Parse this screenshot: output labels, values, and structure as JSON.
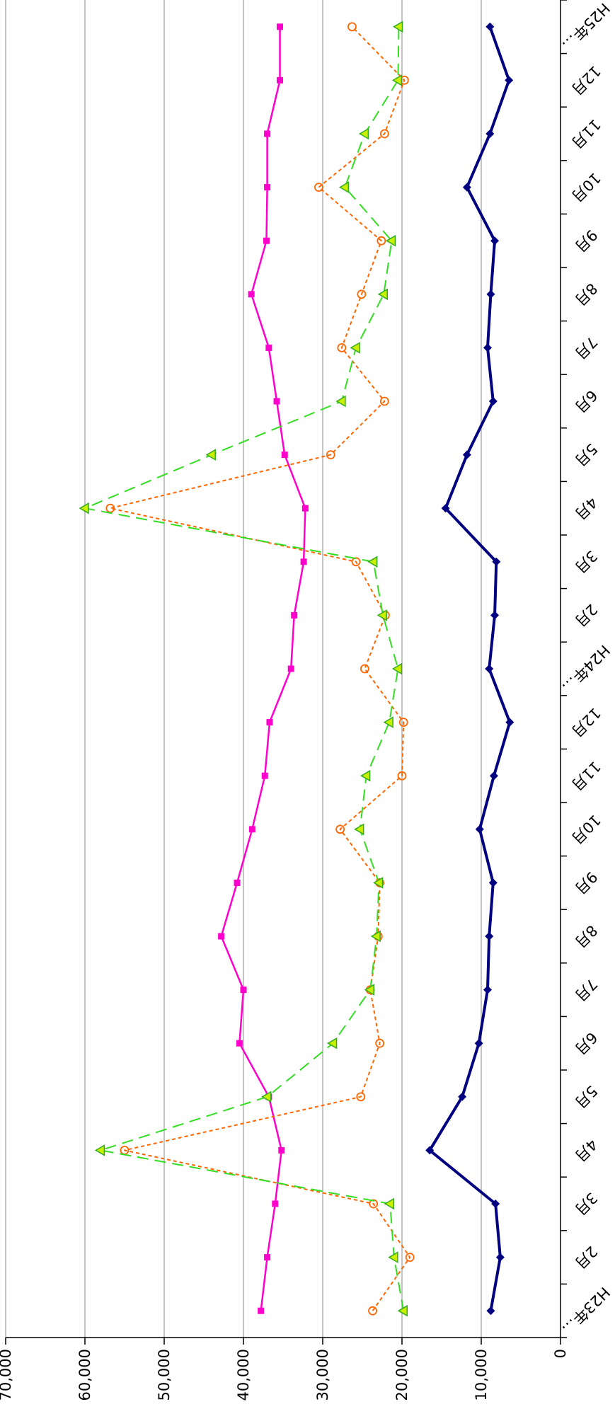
{
  "chart_data": {
    "type": "line",
    "orientation": "rotated-90-clockwise",
    "categories": [
      "H23年…",
      "2月",
      "3月",
      "4月",
      "5月",
      "6月",
      "7月",
      "8月",
      "9月",
      "10月",
      "11月",
      "12月",
      "H24年…",
      "2月",
      "3月",
      "4月",
      "5月",
      "6月",
      "7月",
      "8月",
      "9月",
      "10月",
      "11月",
      "12月",
      "H25年…"
    ],
    "y_ticks": [
      "0",
      "10,000",
      "20,000",
      "30,000",
      "40,000",
      "50,000",
      "60,000",
      "70,000"
    ],
    "ylim": [
      0,
      70000
    ],
    "grid": true,
    "title": "",
    "xlabel": "",
    "ylabel": "",
    "series": [
      {
        "color": "#000080",
        "marker": "diamond",
        "dash": "solid",
        "values": [
          8800,
          7600,
          8200,
          16500,
          12400,
          10300,
          9200,
          9000,
          8500,
          10200,
          8400,
          6400,
          9000,
          8300,
          8100,
          14500,
          11800,
          8500,
          9200,
          8800,
          8300,
          11800,
          8900,
          6500,
          8900
        ]
      },
      {
        "color": "#ff00cc",
        "marker": "square",
        "dash": "solid",
        "values": [
          37800,
          37000,
          36000,
          35200,
          36800,
          40500,
          40000,
          42800,
          40800,
          38900,
          37300,
          36700,
          34000,
          33600,
          32400,
          32200,
          34800,
          35800,
          36800,
          39000,
          37100,
          37000,
          37000,
          35400,
          35400
        ]
      },
      {
        "color": "#ff6600",
        "marker": "circle",
        "dash": "dotted",
        "values": [
          23700,
          19000,
          23600,
          55000,
          25200,
          22800,
          24000,
          23000,
          22800,
          27800,
          20000,
          19800,
          24700,
          22100,
          25800,
          56800,
          29000,
          22200,
          27600,
          25100,
          22600,
          30500,
          22200,
          19700,
          26300
        ]
      },
      {
        "color": "#33dd22",
        "marker": "triangle",
        "dash": "dashed",
        "values": [
          19800,
          21000,
          21500,
          58000,
          37000,
          28700,
          24000,
          23200,
          22900,
          25300,
          24500,
          21600,
          20500,
          22400,
          23600,
          60000,
          44000,
          27600,
          25800,
          22300,
          21300,
          27200,
          24700,
          20500,
          20400
        ]
      }
    ]
  }
}
